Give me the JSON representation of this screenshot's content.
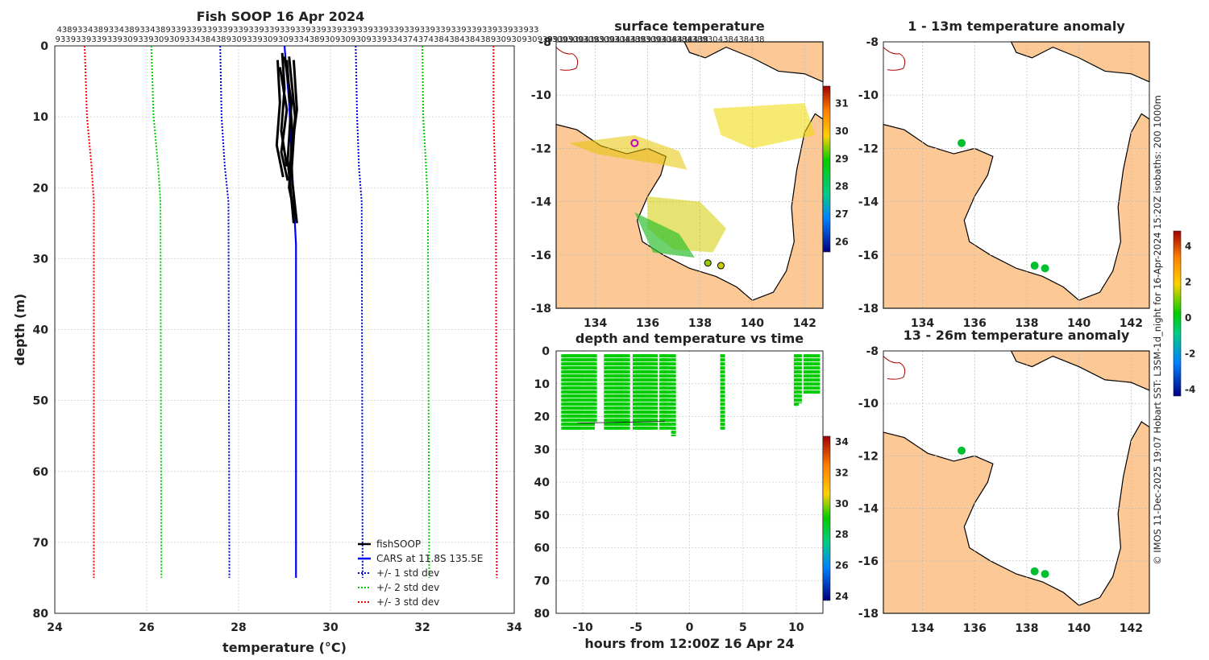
{
  "chart_data": [
    {
      "type": "line",
      "id": "profile",
      "title": "Fish SOOP 16 Apr 2024",
      "xlabel": "temperature (°C)",
      "ylabel": "depth (m)",
      "xlim": [
        24,
        34
      ],
      "ylim": [
        0,
        80
      ],
      "xticks": [
        24,
        26,
        28,
        30,
        32,
        34
      ],
      "yticks": [
        0,
        10,
        20,
        30,
        40,
        50,
        60,
        70,
        80
      ],
      "top_labels_row1": [
        "438",
        "933",
        "438",
        "933",
        "438",
        "933",
        "438",
        "933",
        "933",
        "933",
        "933",
        "933",
        "933",
        "933",
        "933",
        "933",
        "933",
        "933",
        "933",
        "933",
        "933",
        "933",
        "933",
        "933",
        "933",
        "933",
        "933",
        "933",
        "933",
        "933",
        "933"
      ],
      "top_labels_row2": [
        "933",
        "933",
        "933",
        "933",
        "930",
        "933",
        "930",
        "930",
        "933",
        "438",
        "438",
        "930",
        "933",
        "930",
        "930",
        "933",
        "438",
        "930",
        "930",
        "930",
        "933",
        "933",
        "437",
        "437",
        "438",
        "438",
        "438",
        "438",
        "930",
        "930",
        "930",
        "930",
        "930",
        "930",
        "438",
        "930",
        "438",
        "438",
        "930",
        "438",
        "438",
        "438"
      ],
      "legend": [
        "fishSOOP",
        "CARS at 11.8S 135.5E",
        "+/- 1 std dev",
        "+/- 2 std dev",
        "+/- 3 std dev"
      ],
      "series": [
        {
          "name": "CARS mean",
          "color": "#0000ff",
          "points": [
            [
              29.0,
              0
            ],
            [
              29.1,
              8
            ],
            [
              29.15,
              15
            ],
            [
              29.2,
              22
            ],
            [
              29.25,
              28
            ],
            [
              29.25,
              75
            ]
          ]
        },
        {
          "name": "-1 std",
          "color": "#0000cc",
          "points": [
            [
              27.6,
              0
            ],
            [
              27.63,
              10
            ],
            [
              27.7,
              17
            ],
            [
              27.78,
              22
            ],
            [
              27.8,
              75
            ]
          ]
        },
        {
          "name": "+1 std",
          "color": "#0000cc",
          "points": [
            [
              30.55,
              0
            ],
            [
              30.58,
              10
            ],
            [
              30.62,
              17
            ],
            [
              30.68,
              22
            ],
            [
              30.7,
              75
            ]
          ]
        },
        {
          "name": "-2 std",
          "color": "#00cc00",
          "points": [
            [
              26.1,
              0
            ],
            [
              26.15,
              10
            ],
            [
              26.25,
              17
            ],
            [
              26.3,
              22
            ],
            [
              26.32,
              75
            ]
          ]
        },
        {
          "name": "+2 std",
          "color": "#00cc00",
          "points": [
            [
              32.0,
              0
            ],
            [
              32.02,
              10
            ],
            [
              32.08,
              17
            ],
            [
              32.12,
              22
            ],
            [
              32.15,
              75
            ]
          ]
        },
        {
          "name": "-3 std",
          "color": "#ff0000",
          "points": [
            [
              24.65,
              0
            ],
            [
              24.7,
              10
            ],
            [
              24.8,
              17
            ],
            [
              24.85,
              22
            ],
            [
              24.85,
              75
            ]
          ]
        },
        {
          "name": "+3 std",
          "color": "#ff0000",
          "points": [
            [
              33.55,
              0
            ],
            [
              33.55,
              10
            ],
            [
              33.58,
              17
            ],
            [
              33.6,
              22
            ],
            [
              33.62,
              75
            ]
          ]
        }
      ],
      "fish_profiles": [
        [
          [
            28.9,
            2
          ],
          [
            28.85,
            8
          ],
          [
            28.88,
            14
          ],
          [
            28.92,
            18.5
          ]
        ],
        [
          [
            29.0,
            1
          ],
          [
            28.95,
            6
          ],
          [
            28.98,
            12
          ],
          [
            29.0,
            17
          ]
        ],
        [
          [
            29.05,
            1.5
          ],
          [
            29.1,
            8
          ],
          [
            29.12,
            16
          ],
          [
            29.15,
            25
          ]
        ],
        [
          [
            29.15,
            1.5
          ],
          [
            29.18,
            10
          ],
          [
            29.2,
            18
          ],
          [
            29.22,
            25
          ]
        ],
        [
          [
            29.25,
            2
          ],
          [
            29.22,
            9
          ],
          [
            29.2,
            15
          ]
        ],
        [
          [
            28.95,
            3
          ],
          [
            29.0,
            9
          ],
          [
            28.98,
            15
          ],
          [
            29.02,
            19
          ]
        ],
        [
          [
            29.1,
            2
          ],
          [
            29.12,
            12
          ],
          [
            29.15,
            20
          ],
          [
            29.18,
            24
          ]
        ]
      ]
    },
    {
      "type": "heatmap",
      "id": "sst_map",
      "title": "surface temperature",
      "xticks": [
        134,
        136,
        138,
        140,
        142
      ],
      "yticks": [
        -8,
        -10,
        -12,
        -14,
        -16,
        -18
      ],
      "xlim": [
        132.5,
        142.7
      ],
      "ylim": [
        -18,
        -8
      ],
      "top_labels": [
        "930",
        "930",
        "930",
        "930",
        "930",
        "438",
        "930",
        "930",
        "438",
        "438",
        "930",
        "438",
        "438",
        "438"
      ],
      "colorbar_ticks": [
        26,
        27,
        28,
        29,
        30,
        31
      ]
    },
    {
      "type": "scatter",
      "id": "time_depth",
      "title": "depth and temperature vs time",
      "xlabel": "hours from 12:00Z 16 Apr 24",
      "xticks": [
        -10,
        -5,
        0,
        5,
        10
      ],
      "yticks": [
        0,
        10,
        20,
        30,
        40,
        50,
        60,
        70,
        80
      ],
      "xlim": [
        -12.5,
        12.5
      ],
      "ylim": [
        0,
        80
      ],
      "colorbar_ticks": [
        24,
        26,
        28,
        30,
        32,
        34
      ],
      "casts": [
        {
          "t": -11.8,
          "d": 24
        },
        {
          "t": -11.6,
          "d": 24
        },
        {
          "t": -11.4,
          "d": 24
        },
        {
          "t": -11.2,
          "d": 24
        },
        {
          "t": -11.0,
          "d": 24
        },
        {
          "t": -10.8,
          "d": 24
        },
        {
          "t": -10.6,
          "d": 24
        },
        {
          "t": -10.4,
          "d": 24
        },
        {
          "t": -10.2,
          "d": 24
        },
        {
          "t": -9.9,
          "d": 24
        },
        {
          "t": -9.6,
          "d": 24
        },
        {
          "t": -9.4,
          "d": 24
        },
        {
          "t": -9.1,
          "d": 24
        },
        {
          "t": -8.9,
          "d": 22
        },
        {
          "t": -7.8,
          "d": 24
        },
        {
          "t": -7.6,
          "d": 24
        },
        {
          "t": -7.4,
          "d": 24
        },
        {
          "t": -7.1,
          "d": 24
        },
        {
          "t": -6.9,
          "d": 24
        },
        {
          "t": -6.7,
          "d": 24
        },
        {
          "t": -6.5,
          "d": 24
        },
        {
          "t": -6.3,
          "d": 24
        },
        {
          "t": -6.1,
          "d": 24
        },
        {
          "t": -5.8,
          "d": 24
        },
        {
          "t": -5.1,
          "d": 24
        },
        {
          "t": -4.9,
          "d": 24
        },
        {
          "t": -4.7,
          "d": 24
        },
        {
          "t": -4.5,
          "d": 24
        },
        {
          "t": -4.3,
          "d": 24
        },
        {
          "t": -4.1,
          "d": 24
        },
        {
          "t": -3.9,
          "d": 24
        },
        {
          "t": -3.7,
          "d": 24
        },
        {
          "t": -3.5,
          "d": 24
        },
        {
          "t": -3.2,
          "d": 24
        },
        {
          "t": -2.6,
          "d": 24
        },
        {
          "t": -2.4,
          "d": 24
        },
        {
          "t": -2.2,
          "d": 24
        },
        {
          "t": -1.9,
          "d": 24
        },
        {
          "t": -1.5,
          "d": 26
        },
        {
          "t": 3.1,
          "d": 24
        },
        {
          "t": 10.0,
          "d": 17
        },
        {
          "t": 10.3,
          "d": 16
        },
        {
          "t": 10.9,
          "d": 13
        },
        {
          "t": 11.2,
          "d": 13
        },
        {
          "t": 11.6,
          "d": 13
        },
        {
          "t": 12.0,
          "d": 13
        }
      ]
    },
    {
      "type": "heatmap",
      "id": "anom1",
      "title": "1 - 13m temperature anomaly",
      "xticks": [
        134,
        136,
        138,
        140,
        142
      ],
      "yticks": [
        -8,
        -10,
        -12,
        -14,
        -16,
        -18
      ],
      "points": [
        [
          135.5,
          -11.8
        ],
        [
          138.3,
          -16.4
        ],
        [
          138.7,
          -16.5
        ]
      ]
    },
    {
      "type": "heatmap",
      "id": "anom2",
      "title": "13 - 26m temperature anomaly",
      "xticks": [
        134,
        136,
        138,
        140,
        142
      ],
      "yticks": [
        -8,
        -10,
        -12,
        -14,
        -16,
        -18
      ],
      "points": [
        [
          135.5,
          -11.8
        ],
        [
          138.3,
          -16.4
        ],
        [
          138.7,
          -16.5
        ]
      ],
      "colorbar_ticks": [
        4,
        2,
        0,
        -2,
        -4
      ]
    }
  ],
  "credit": "© IMOS 11-Dec-2025 19:07 Hobart SST: L3SM-1d_night for 16-Apr-2024 15:20Z isobaths: 200  1000m",
  "colors": {
    "land": "#fbc896",
    "fish": "#000000",
    "grid": "#cccccc"
  }
}
